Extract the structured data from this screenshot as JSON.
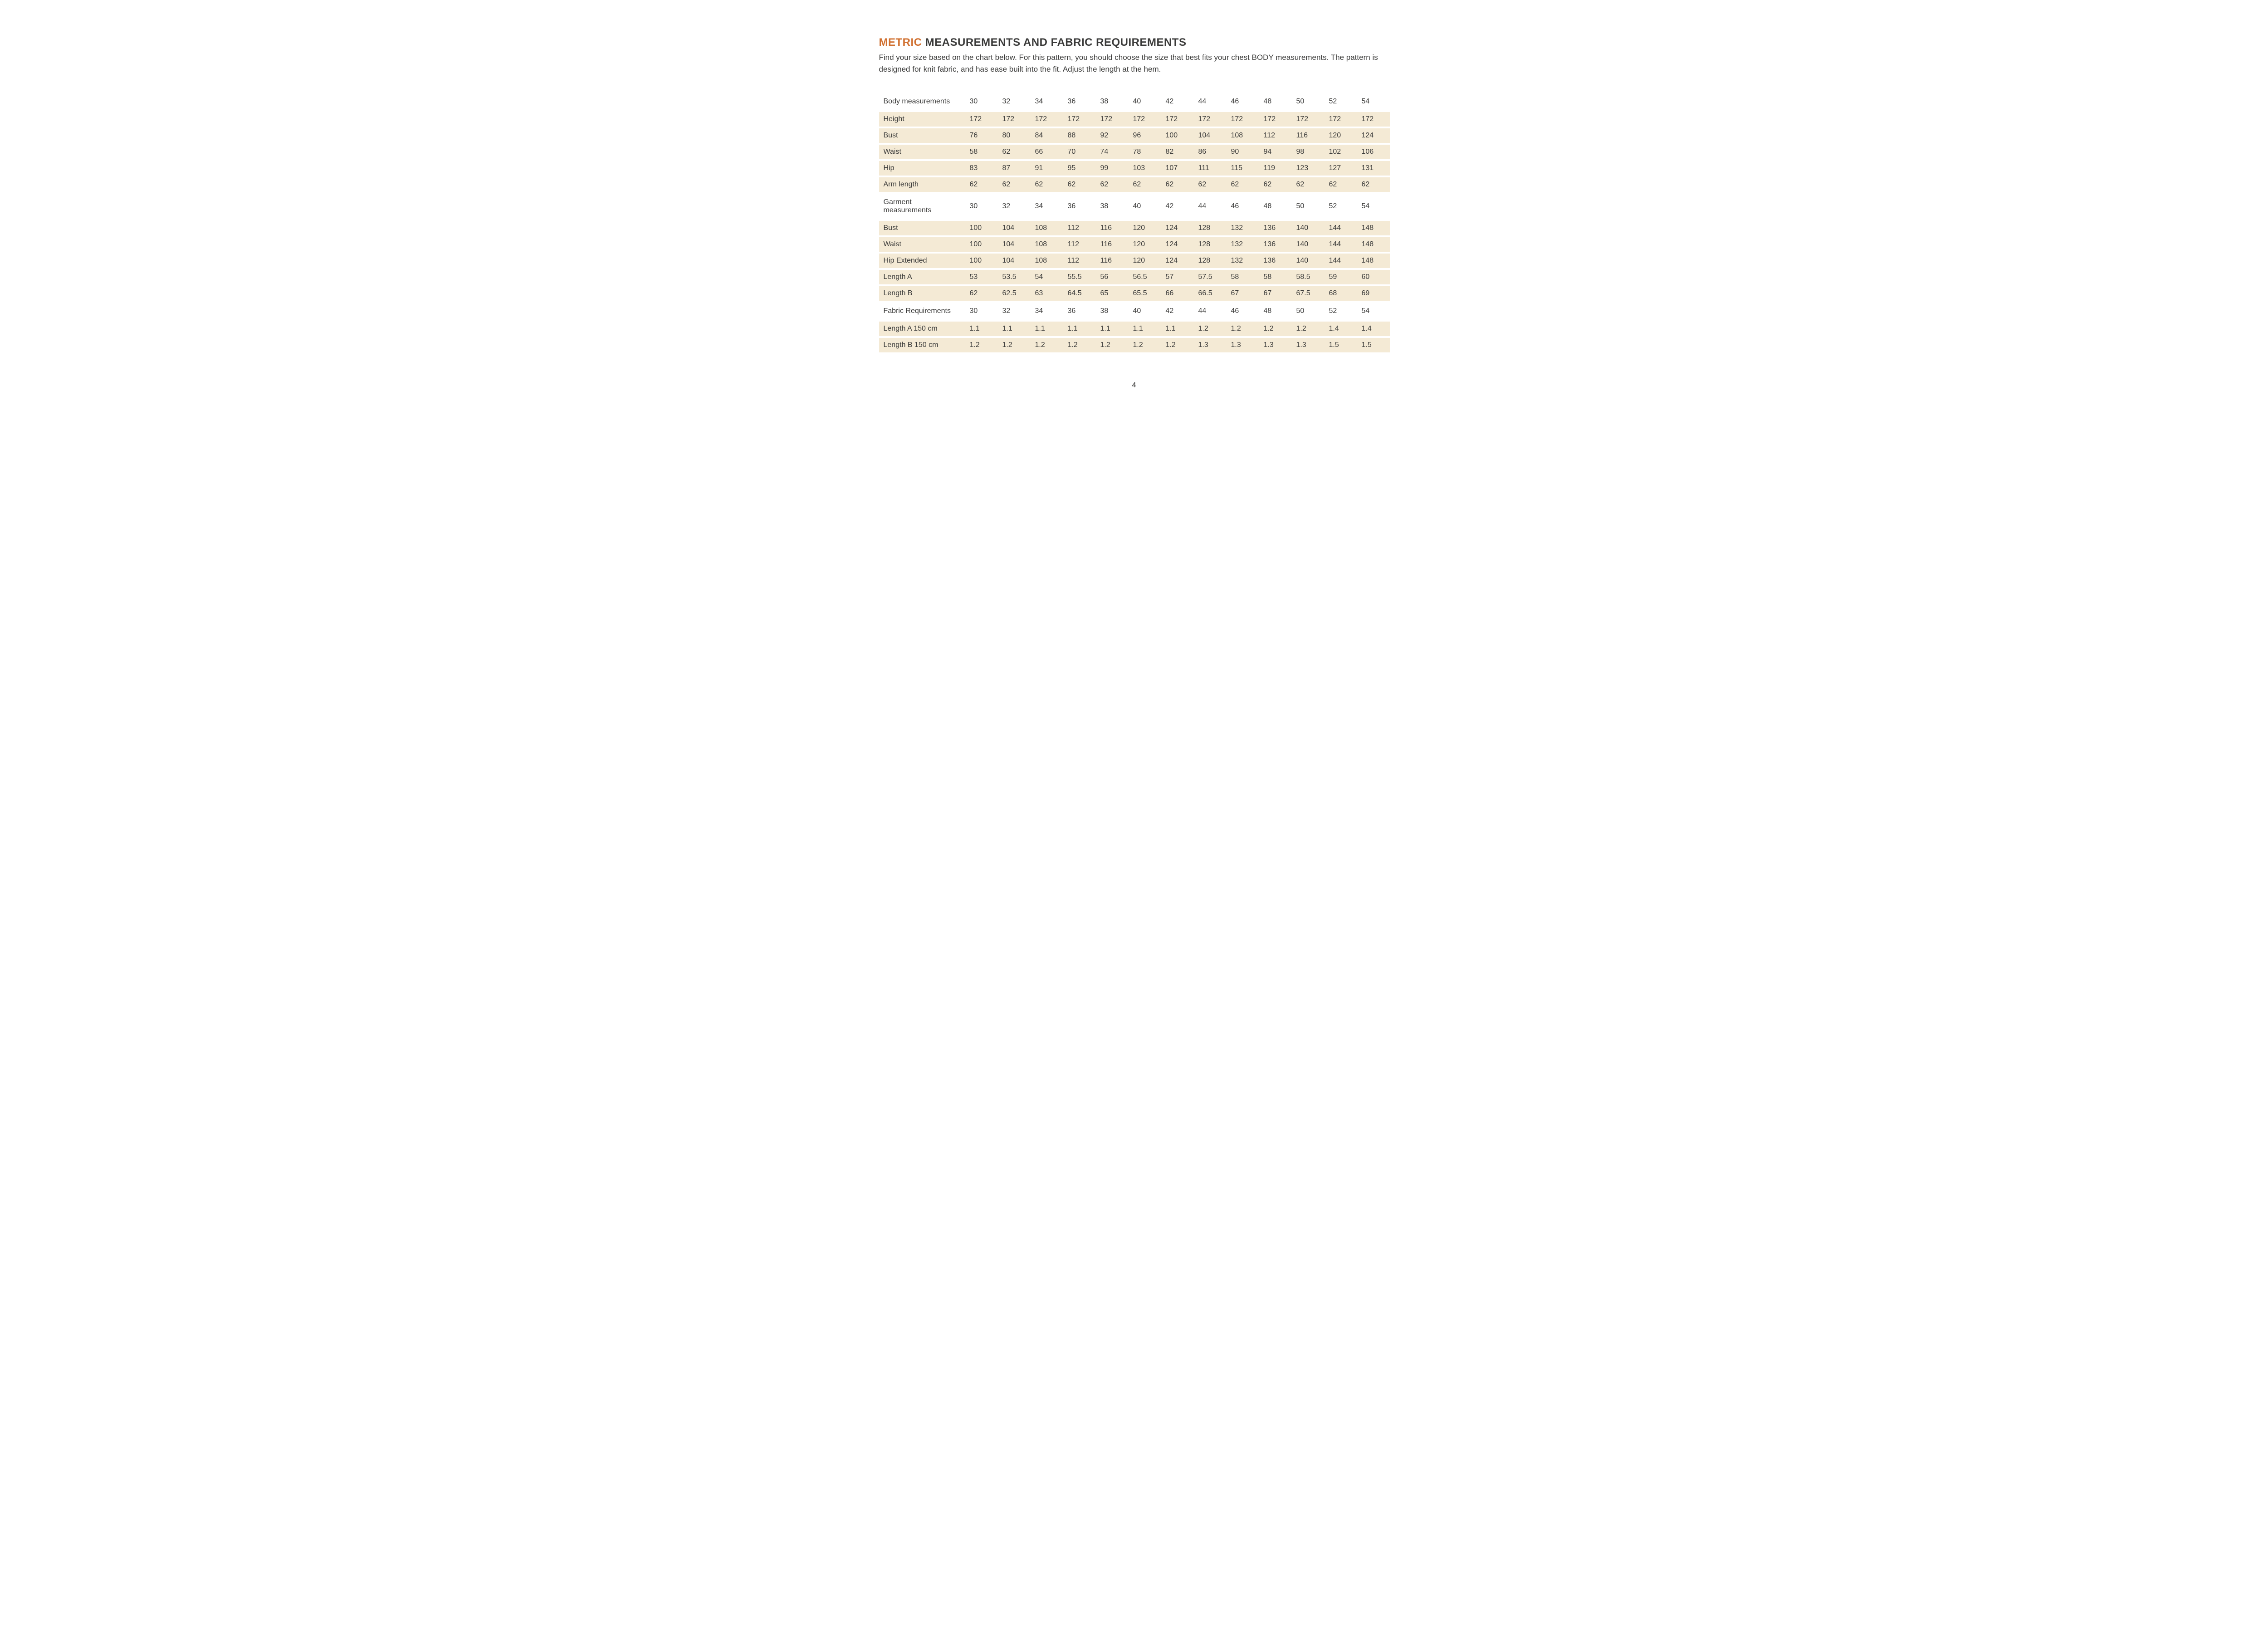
{
  "title_accent": "METRIC",
  "title_rest": "MEASUREMENTS AND FABRIC REQUIREMENTS",
  "intro": "Find your size based on the chart below. For this pattern, you should choose the size that best fits your chest BODY measurements. The pattern is designed for knit fabric, and has ease built into the fit.  Adjust the length at the hem.",
  "page_number": "4",
  "colors": {
    "accent": "#d07030",
    "text": "#3a3a39",
    "row_bg": "#f4ead5",
    "page_bg": "#ffffff"
  },
  "sizes": [
    "30",
    "32",
    "34",
    "36",
    "38",
    "40",
    "42",
    "44",
    "46",
    "48",
    "50",
    "52",
    "54"
  ],
  "sections": [
    {
      "label": "Body measurements",
      "rows": [
        {
          "label": "Height",
          "values": [
            "172",
            "172",
            "172",
            "172",
            "172",
            "172",
            "172",
            "172",
            "172",
            "172",
            "172",
            "172",
            "172"
          ]
        },
        {
          "label": "Bust",
          "values": [
            "76",
            "80",
            "84",
            "88",
            "92",
            "96",
            "100",
            "104",
            "108",
            "112",
            "116",
            "120",
            "124"
          ]
        },
        {
          "label": "Waist",
          "values": [
            "58",
            "62",
            "66",
            "70",
            "74",
            "78",
            "82",
            "86",
            "90",
            "94",
            "98",
            "102",
            "106"
          ]
        },
        {
          "label": "Hip",
          "values": [
            "83",
            "87",
            "91",
            "95",
            "99",
            "103",
            "107",
            "111",
            "115",
            "119",
            "123",
            "127",
            "131"
          ]
        },
        {
          "label": "Arm length",
          "values": [
            "62",
            "62",
            "62",
            "62",
            "62",
            "62",
            "62",
            "62",
            "62",
            "62",
            "62",
            "62",
            "62"
          ]
        }
      ]
    },
    {
      "label": "Garment measurements",
      "rows": [
        {
          "label": "Bust",
          "values": [
            "100",
            "104",
            "108",
            "112",
            "116",
            "120",
            "124",
            "128",
            "132",
            "136",
            "140",
            "144",
            "148"
          ]
        },
        {
          "label": "Waist",
          "values": [
            "100",
            "104",
            "108",
            "112",
            "116",
            "120",
            "124",
            "128",
            "132",
            "136",
            "140",
            "144",
            "148"
          ]
        },
        {
          "label": "Hip Extended",
          "values": [
            "100",
            "104",
            "108",
            "112",
            "116",
            "120",
            "124",
            "128",
            "132",
            "136",
            "140",
            "144",
            "148"
          ]
        },
        {
          "label": "Length A",
          "values": [
            "53",
            "53.5",
            "54",
            "55.5",
            "56",
            "56.5",
            "57",
            "57.5",
            "58",
            "58",
            "58.5",
            "59",
            "60"
          ]
        },
        {
          "label": "Length B",
          "values": [
            "62",
            "62.5",
            "63",
            "64.5",
            "65",
            "65.5",
            "66",
            "66.5",
            "67",
            "67",
            "67.5",
            "68",
            "69"
          ]
        }
      ]
    },
    {
      "label": "Fabric Requirements",
      "rows": [
        {
          "label": "Length A 150 cm",
          "values": [
            "1.1",
            "1.1",
            "1.1",
            "1.1",
            "1.1",
            "1.1",
            "1.1",
            "1.2",
            "1.2",
            "1.2",
            "1.2",
            "1.4",
            "1.4"
          ]
        },
        {
          "label": "Length B 150 cm",
          "values": [
            "1.2",
            "1.2",
            "1.2",
            "1.2",
            "1.2",
            "1.2",
            "1.2",
            "1.3",
            "1.3",
            "1.3",
            "1.3",
            "1.5",
            "1.5"
          ]
        }
      ]
    }
  ]
}
